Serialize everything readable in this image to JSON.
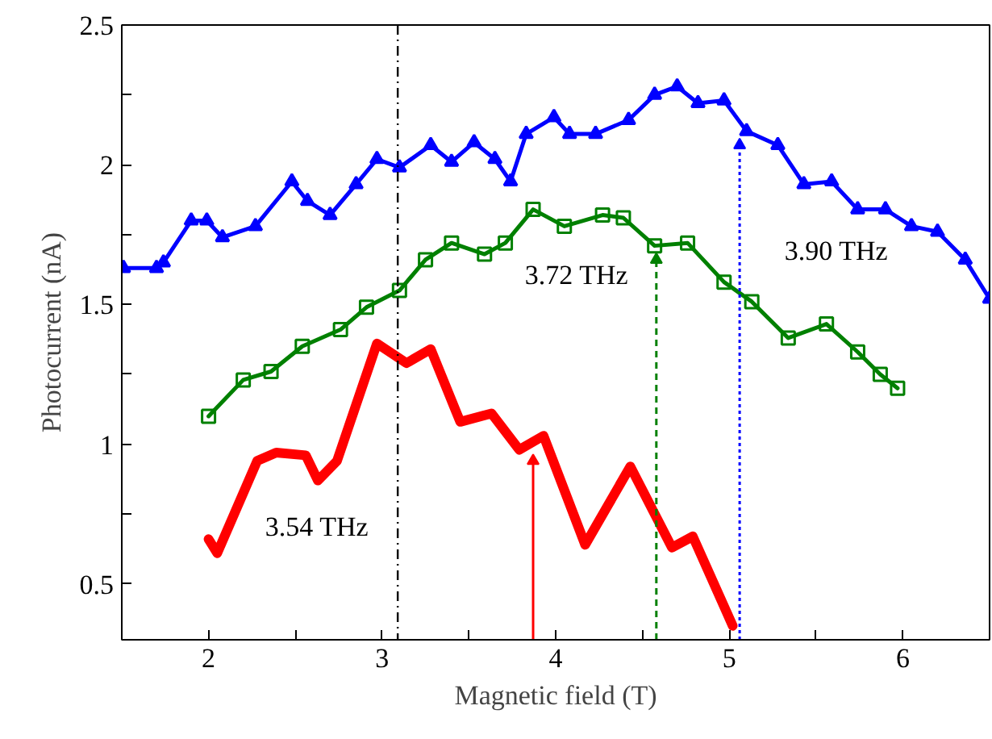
{
  "chart_data": {
    "type": "line",
    "xlabel": "Magnetic field (T)",
    "ylabel": "Photocurrent (nA)",
    "xlim": [
      1.5,
      6.5
    ],
    "ylim": [
      0.3,
      2.5
    ],
    "xticks": [
      2,
      {
        "value": 2.5,
        "label": null
      },
      3,
      {
        "value": 3.5,
        "label": null
      },
      4,
      {
        "value": 4.5,
        "label": null
      },
      5,
      {
        "value": 5.5,
        "label": null
      },
      6
    ],
    "yticks": [
      0.5,
      {
        "value": 0.75,
        "label": null
      },
      1,
      {
        "value": 1.25,
        "label": null
      },
      1.5,
      {
        "value": 1.75,
        "label": null
      },
      2,
      {
        "value": 2.25,
        "label": null
      },
      2.5
    ],
    "grid": false,
    "series": [
      {
        "color": "#0000ff",
        "marker": "triangle",
        "line_style": "solid",
        "x": [
          1.51,
          1.7,
          1.74,
          1.9,
          1.99,
          2.08,
          2.27,
          2.48,
          2.57,
          2.7,
          2.85,
          2.97,
          3.1,
          3.28,
          3.4,
          3.53,
          3.65,
          3.74,
          3.83,
          3.99,
          4.08,
          4.23,
          4.42,
          4.57,
          4.7,
          4.82,
          4.97,
          5.1,
          5.28,
          5.43,
          5.59,
          5.74,
          5.9,
          6.05,
          6.2,
          6.36,
          6.5
        ],
        "values": [
          1.63,
          1.63,
          1.65,
          1.8,
          1.8,
          1.74,
          1.78,
          1.94,
          1.87,
          1.82,
          1.93,
          2.02,
          1.99,
          2.07,
          2.01,
          2.08,
          2.02,
          1.94,
          2.11,
          2.17,
          2.11,
          2.11,
          2.16,
          2.25,
          2.28,
          2.22,
          2.23,
          2.12,
          2.07,
          1.93,
          1.94,
          1.84,
          1.84,
          1.78,
          1.76,
          1.66,
          1.52
        ]
      },
      {
        "color": "#008000",
        "marker": "square",
        "line_style": "solid",
        "x": [
          2.0,
          2.2,
          2.36,
          2.54,
          2.76,
          2.91,
          3.1,
          3.25,
          3.4,
          3.59,
          3.71,
          3.87,
          4.05,
          4.27,
          4.39,
          4.57,
          4.76,
          4.97,
          5.13,
          5.34,
          5.56,
          5.74,
          5.87,
          5.97
        ],
        "values": [
          1.1,
          1.23,
          1.26,
          1.35,
          1.41,
          1.49,
          1.55,
          1.66,
          1.72,
          1.68,
          1.72,
          1.84,
          1.78,
          1.82,
          1.81,
          1.71,
          1.72,
          1.58,
          1.51,
          1.38,
          1.43,
          1.33,
          1.25,
          1.2
        ]
      },
      {
        "color": "#ff0000",
        "marker": "none",
        "line_style": "solid",
        "x": [
          2.0,
          2.05,
          2.28,
          2.39,
          2.56,
          2.63,
          2.74,
          2.97,
          3.14,
          3.28,
          3.45,
          3.63,
          3.79,
          3.93,
          4.17,
          4.3,
          4.43,
          4.67,
          4.79,
          5.02
        ],
        "values": [
          0.66,
          0.61,
          0.94,
          0.97,
          0.96,
          0.87,
          0.94,
          1.36,
          1.29,
          1.34,
          1.08,
          1.11,
          0.98,
          1.03,
          0.64,
          0.78,
          0.92,
          0.63,
          0.67,
          0.35
        ]
      },
      {
        "color": "#ff0000",
        "line_style": "solid",
        "x": [
          3.87,
          3.87
        ],
        "values": [
          0.3,
          0.94
        ]
      },
      {
        "color": "#008000",
        "line_style": "dashed",
        "x": [
          4.58,
          4.58
        ],
        "values": [
          0.3,
          1.66
        ]
      },
      {
        "color": "#0000ff",
        "line_style": "dotted",
        "x": [
          5.06,
          5.06
        ],
        "values": [
          0.3,
          2.07
        ]
      }
    ],
    "ref_lines": [
      {
        "axis": "x",
        "value": 3.09,
        "label": null,
        "color": "#000000",
        "line_style": "dashdot"
      }
    ],
    "annotations": [
      "3.54 THz",
      "3.72 THz",
      "3.90 THz"
    ]
  }
}
